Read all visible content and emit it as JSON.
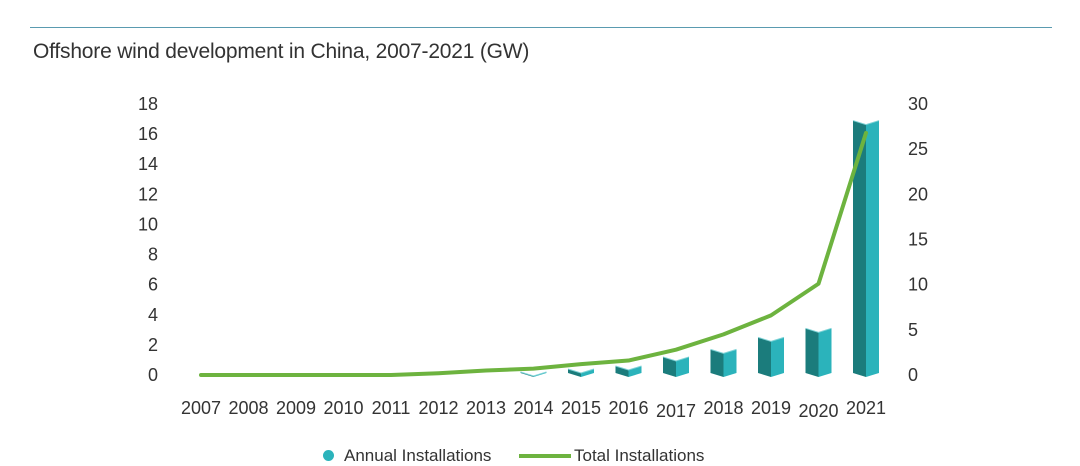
{
  "title": "Offshore wind development in China, 2007-2021 (GW)",
  "colors": {
    "annual_front": "#2bb3bb",
    "annual_side": "#1b7c7c",
    "annual_top": "#7fd3d6",
    "total_line": "#6db33f",
    "rule": "#5a9bb0"
  },
  "chart_data": {
    "type": "bar",
    "categories": [
      "2007",
      "2008",
      "2009",
      "2010",
      "2011",
      "2012",
      "2013",
      "2014",
      "2015",
      "2016",
      "2017",
      "2018",
      "2019",
      "2020",
      "2021"
    ],
    "series": [
      {
        "name": "Annual Installations",
        "type": "bar",
        "axis": "left",
        "values": [
          0,
          0,
          0,
          0,
          0,
          0,
          0,
          0.2,
          0.4,
          0.6,
          1.2,
          1.7,
          2.5,
          3.1,
          16.9
        ]
      },
      {
        "name": "Total Installations",
        "type": "line",
        "axis": "right",
        "values": [
          0,
          0,
          0,
          0,
          0,
          0.2,
          0.5,
          0.7,
          1.2,
          1.6,
          2.8,
          4.5,
          6.6,
          10.1,
          26.8
        ]
      }
    ],
    "y_left": {
      "min": 0,
      "max": 18,
      "ticks": [
        "0",
        "2",
        "4",
        "6",
        "8",
        "10",
        "12",
        "14",
        "16",
        "18"
      ]
    },
    "y_right": {
      "min": 0,
      "max": 30,
      "ticks": [
        "0",
        "5",
        "10",
        "15",
        "20",
        "25",
        "30"
      ]
    },
    "legend_position": "bottom-center",
    "grid": false
  },
  "legend": {
    "annual_label": "Annual  Installations",
    "total_label": "Total Installations"
  }
}
